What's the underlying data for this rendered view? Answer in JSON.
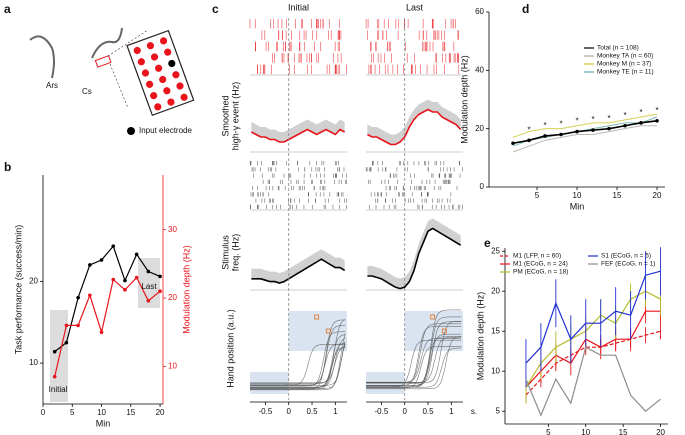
{
  "panels": [
    "a",
    "b",
    "c",
    "d",
    "e"
  ],
  "schematic": {
    "labels": [
      "Ars",
      "Cs"
    ],
    "legend": "Input electrode"
  },
  "chart_data": [
    {
      "type": "dual-line",
      "x": [
        2,
        4,
        6,
        8,
        10,
        12,
        14,
        16,
        18,
        20
      ],
      "xlim": [
        0,
        20.5
      ],
      "xticks": [
        0,
        5,
        10,
        15,
        20
      ],
      "xlabel": "Min",
      "ylabel": "Task performance (success/min)",
      "ylim": [
        5,
        33
      ],
      "yticks": [
        10,
        20
      ],
      "y2label": "Modulation depth (Hz)",
      "y2lim": [
        4.5,
        38
      ],
      "y2ticks": [
        10,
        20,
        30
      ],
      "series": [
        {
          "color": "#000000",
          "values": [
            11.4,
            12.5,
            18,
            22,
            22.6,
            24.3,
            20.1,
            23.3,
            21.2,
            20.6
          ]
        },
        {
          "color": "#e8141b",
          "axis": "y2",
          "values": [
            8.5,
            16,
            16,
            20.4,
            15,
            22.7,
            21.2,
            23,
            19.6,
            21
          ]
        }
      ],
      "annotations": [
        "Initial",
        "Last"
      ]
    },
    {
      "type": "raster-psth",
      "columns": [
        "Initial",
        "Last"
      ],
      "x": [
        -0.8,
        -0.7,
        -0.6,
        -0.5,
        -0.4,
        -0.3,
        -0.2,
        -0.1,
        0,
        0.1,
        0.2,
        0.3,
        0.4,
        0.5,
        0.6,
        0.7,
        0.8,
        0.9,
        1,
        1.1,
        1.2
      ],
      "xlim": [
        -0.83,
        1.25
      ],
      "xticks": [
        -0.5,
        0,
        0.5,
        1
      ],
      "x_unit": "s.",
      "ylabels": [
        [
          "Smoothed",
          "high-γ event (Hz)"
        ],
        [
          "Stimulus",
          "freq. (Hz)"
        ],
        [
          "Hand position (a.u.)"
        ]
      ],
      "high_gamma": {
        "color": "#e8141b",
        "values": [
          [
            8,
            7,
            6,
            6,
            5,
            5,
            4,
            4,
            5,
            6,
            7,
            8,
            9,
            8,
            7,
            8,
            9,
            8,
            7,
            9,
            8
          ],
          [
            7,
            6,
            6,
            5,
            4,
            3,
            3,
            4,
            6,
            10,
            13,
            15,
            16,
            17,
            16,
            16,
            14,
            13,
            12,
            11,
            9
          ]
        ]
      },
      "stimulus": {
        "color": "#000000",
        "values": [
          [
            4,
            4,
            4,
            3.5,
            3,
            3,
            2.5,
            3,
            4,
            5,
            6,
            7,
            8,
            9,
            10,
            11,
            10,
            9,
            8,
            8,
            7
          ],
          [
            5,
            5,
            4.5,
            4,
            3,
            2,
            1,
            0.5,
            1,
            3,
            7,
            13,
            17,
            21,
            22,
            21,
            20,
            19,
            18,
            17,
            16
          ]
        ]
      }
    },
    {
      "type": "line",
      "x": [
        2,
        4,
        6,
        8,
        10,
        12,
        14,
        16,
        18,
        20
      ],
      "xlim": [
        -1,
        21
      ],
      "xticks": [
        5,
        10,
        15,
        20
      ],
      "xlabel": "Min",
      "ylabel": "Modulation depth (Hz)",
      "ylim": [
        0,
        60
      ],
      "yticks": [
        0,
        20,
        40,
        60
      ],
      "series": [
        {
          "name": "Total (n = 108)",
          "color": "#000000",
          "values": [
            15,
            16,
            17.5,
            18,
            19,
            19.5,
            20,
            21,
            22,
            22.7
          ]
        },
        {
          "name": "Monkey TA (n = 60)",
          "color": "#a8a8a8",
          "values": [
            12,
            14,
            16,
            17,
            18,
            18,
            19,
            20,
            21,
            21
          ]
        },
        {
          "name": "Monkey M (n = 37)",
          "color": "#c9c42a",
          "values": [
            17,
            19,
            20,
            20,
            21,
            22,
            22,
            23,
            24,
            25
          ]
        },
        {
          "name": "Monkey TE (n = 11)",
          "color": "#5fa9a8",
          "values": [
            14,
            16,
            17,
            18,
            19,
            20,
            21,
            22,
            22,
            24
          ]
        }
      ],
      "annotations": [
        null,
        "*",
        "*",
        "*",
        "*",
        "*",
        "*",
        "*",
        "*",
        "*"
      ]
    },
    {
      "type": "errorbar-line",
      "x": [
        2,
        4,
        6,
        8,
        10,
        12,
        14,
        16,
        18,
        20
      ],
      "xlim": [
        -0.8,
        21
      ],
      "xticks": [
        5,
        10,
        15,
        20
      ],
      "xlabel": "Min",
      "ylabel": "Modulation depth (Hz)",
      "ylim": [
        3.4,
        25.4
      ],
      "yticks": [
        5,
        10,
        15,
        20,
        25
      ],
      "series": [
        {
          "name": "M1 (LFP, n = 60)",
          "color": "#e8141b",
          "dashed": true,
          "values": [
            7,
            9,
            11,
            12,
            13,
            13,
            13.5,
            14,
            14.5,
            15
          ],
          "errors": [
            1,
            1,
            1,
            1,
            1,
            1,
            1,
            1,
            1,
            1
          ]
        },
        {
          "name": "M1 (ECoG, n = 24)",
          "color": "#e8141b",
          "values": [
            8,
            10,
            12,
            11,
            14,
            13,
            14,
            14,
            17.5,
            17.5
          ],
          "errors": [
            1.5,
            1.5,
            1.5,
            1.5,
            1.5,
            1.5,
            1.5,
            1.5,
            1.5,
            1.5
          ]
        },
        {
          "name": "PM (ECoG, n = 18)",
          "color": "#b5bd2a",
          "values": [
            8,
            11,
            13,
            14,
            15,
            17,
            16,
            19,
            20,
            19
          ],
          "errors": [
            2,
            2,
            2,
            2,
            2,
            2,
            2,
            2,
            2,
            2
          ]
        },
        {
          "name": "S1 (ECoG, n = 5)",
          "color": "#1f2fd6",
          "values": [
            11,
            13,
            18.5,
            14,
            16,
            16,
            17.5,
            17,
            22,
            22.5
          ],
          "errors": [
            3,
            3,
            3,
            3,
            3,
            3,
            3,
            3,
            3,
            3
          ]
        },
        {
          "name": "FEF (ECoG, n = 1)",
          "color": "#8c8c8c",
          "values": [
            9,
            4.5,
            9,
            6,
            13,
            12,
            12,
            7,
            5,
            6.5
          ]
        }
      ]
    }
  ]
}
